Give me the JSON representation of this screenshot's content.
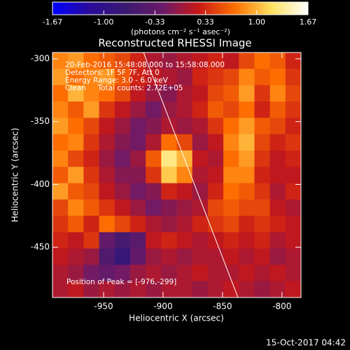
{
  "chart_data": {
    "type": "heatmap",
    "title": "Reconstructed RHESSI Image",
    "xlabel": "Heliocentric X (arcsec)",
    "ylabel": "Heliocentric Y (arcsec)",
    "colorbar_label": "(photons cm⁻² s⁻¹ asec⁻²)",
    "annotations": [
      "20-Feb-2016 15:48:08.000 to 15:58:08.000",
      "Detectors: 1F 5F 7F, Att 0",
      "Energy Range: 3.0 - 6.0 keV",
      "Clean     Total counts: 2.72E+05"
    ],
    "peak_label": "Position of Peak = [-976,-299]",
    "footer": "15-Oct-2017 04:42",
    "xlim": [
      -993,
      -784
    ],
    "ylim": [
      -490,
      -295
    ],
    "xticks": [
      -950,
      -900,
      -850,
      -800
    ],
    "yticks": [
      -300,
      -350,
      -400,
      -450
    ],
    "zlim": [
      -1.67,
      1.67
    ],
    "zticks": [
      -1.67,
      {
        "value": -1,
        "label": "-1.00"
      },
      -0.33,
      0.33,
      {
        "value": 1,
        "label": "1.00"
      },
      1.67
    ],
    "colormap": [
      "#0000ff",
      "#2a0a9a",
      "#3a1a70",
      "#6a1a6a",
      "#c81818",
      "#ff7000",
      "#ffe060",
      "#ffffff"
    ],
    "z": [
      [
        0.8,
        0.9,
        0.7,
        0.6,
        0.5,
        0.3,
        0.1,
        0.0,
        0.1,
        0.2,
        0.3,
        0.2,
        0.5,
        0.7,
        0.6,
        0.3
      ],
      [
        0.9,
        0.7,
        0.8,
        0.9,
        0.6,
        0.3,
        0.2,
        0.1,
        0.0,
        0.3,
        0.4,
        0.5,
        0.8,
        0.6,
        0.7,
        0.4
      ],
      [
        0.7,
        1.0,
        0.8,
        0.7,
        0.5,
        0.2,
        0.0,
        -0.1,
        0.1,
        0.2,
        0.5,
        0.6,
        0.9,
        0.4,
        0.8,
        0.5
      ],
      [
        0.8,
        0.6,
        0.9,
        0.4,
        0.2,
        0.0,
        -0.2,
        0.0,
        0.1,
        0.3,
        0.6,
        0.5,
        0.7,
        0.3,
        0.6,
        0.4
      ],
      [
        0.9,
        0.7,
        0.5,
        0.2,
        0.0,
        -0.2,
        -0.1,
        0.1,
        0.0,
        0.1,
        0.4,
        0.7,
        0.9,
        0.6,
        0.5,
        0.3
      ],
      [
        0.7,
        0.8,
        0.4,
        0.1,
        -0.1,
        -0.2,
        0.1,
        0.7,
        0.5,
        0.0,
        0.2,
        0.8,
        1.0,
        0.5,
        0.3,
        0.4
      ],
      [
        0.8,
        0.5,
        0.3,
        0.0,
        -0.2,
        0.0,
        0.6,
        1.3,
        1.0,
        0.2,
        0.1,
        0.7,
        0.9,
        0.4,
        0.2,
        0.3
      ],
      [
        0.6,
        0.9,
        0.4,
        0.1,
        -0.1,
        -0.1,
        0.4,
        1.1,
        0.8,
        0.1,
        0.2,
        0.8,
        0.8,
        0.3,
        0.2,
        0.2
      ],
      [
        0.9,
        0.6,
        0.5,
        0.2,
        0.0,
        -0.2,
        -0.1,
        0.3,
        0.2,
        0.0,
        0.3,
        0.7,
        0.6,
        0.4,
        0.1,
        0.3
      ],
      [
        0.5,
        0.8,
        0.6,
        0.4,
        0.2,
        0.0,
        -0.2,
        -0.1,
        0.0,
        0.1,
        0.5,
        0.6,
        0.5,
        0.5,
        0.2,
        0.1
      ],
      [
        0.4,
        0.6,
        0.3,
        0.7,
        0.5,
        0.3,
        0.1,
        0.0,
        0.1,
        0.3,
        0.4,
        0.5,
        0.3,
        0.4,
        0.3,
        0.2
      ],
      [
        0.3,
        0.2,
        0.4,
        -0.3,
        -0.6,
        -0.4,
        0.2,
        0.3,
        0.2,
        0.1,
        0.2,
        0.3,
        0.2,
        0.3,
        0.1,
        0.2
      ],
      [
        0.2,
        0.1,
        0.0,
        -0.5,
        -0.8,
        -0.3,
        0.0,
        0.1,
        0.0,
        0.1,
        0.1,
        0.2,
        0.1,
        0.2,
        0.0,
        0.1
      ],
      [
        0.1,
        0.0,
        -0.2,
        -0.3,
        -0.2,
        0.0,
        0.1,
        0.0,
        0.1,
        0.2,
        0.1,
        0.1,
        0.2,
        0.1,
        0.2,
        0.1
      ],
      [
        0.1,
        0.2,
        0.0,
        0.1,
        0.0,
        0.1,
        0.0,
        0.1,
        0.1,
        0.0,
        0.1,
        0.2,
        0.1,
        0.0,
        0.1,
        0.2
      ]
    ]
  }
}
